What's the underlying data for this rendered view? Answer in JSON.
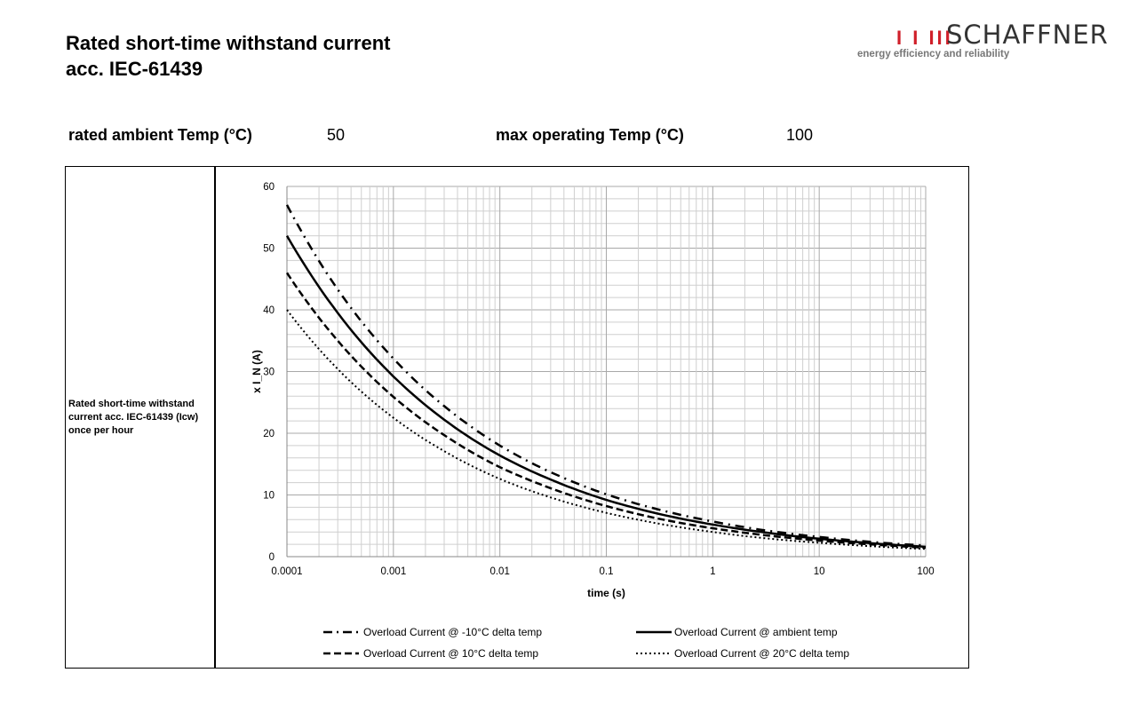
{
  "header": {
    "title_line1": "Rated short-time withstand current",
    "title_line2": "acc. IEC-61439"
  },
  "logo": {
    "wordmark": "SCHAFFNER",
    "bars": "I  I III",
    "tagline": "energy efficiency and reliability"
  },
  "params": {
    "ambient_label": "rated ambient Temp (°C)",
    "ambient_value": "50",
    "max_label": "max operating Temp (°C)",
    "max_value": "100"
  },
  "row_label": "Rated short-time withstand current acc. IEC-61439 (Icw) once per hour",
  "chart_data": {
    "type": "line",
    "xscale": "log",
    "xlabel": "time (s)",
    "ylabel": "x I_N (A)",
    "xlim": [
      0.0001,
      100
    ],
    "ylim": [
      0,
      60
    ],
    "grid": true,
    "legend_position": "bottom",
    "x_ticks": [
      "0.0001",
      "0.001",
      "0.01",
      "0.1",
      "1",
      "10",
      "100"
    ],
    "y_ticks": [
      "0",
      "10",
      "20",
      "30",
      "40",
      "50",
      "60"
    ],
    "x": [
      0.0001,
      0.0003,
      0.001,
      0.003,
      0.01,
      0.03,
      0.1,
      0.3,
      1,
      3,
      10,
      30,
      100
    ],
    "series": [
      {
        "name": "Overload Current @ -10°C delta temp",
        "style": "dashdot",
        "values": [
          57,
          43.3,
          32.1,
          24.4,
          18.0,
          13.7,
          10.1,
          7.7,
          5.7,
          4.3,
          3.2,
          2.4,
          1.8
        ]
      },
      {
        "name": "Overload Current @ ambient temp",
        "style": "solid",
        "values": [
          52,
          39.5,
          29.2,
          22.2,
          16.4,
          12.5,
          9.2,
          7.0,
          5.2,
          3.95,
          2.9,
          2.2,
          1.6
        ]
      },
      {
        "name": "Overload Current @ 10°C delta temp",
        "style": "dashed",
        "values": [
          46,
          35.0,
          25.9,
          19.7,
          14.5,
          11.1,
          8.2,
          6.2,
          4.6,
          3.5,
          2.6,
          2.0,
          1.45
        ]
      },
      {
        "name": "Overload Current @ 20°C delta temp",
        "style": "dotted",
        "values": [
          40,
          30.4,
          22.5,
          17.1,
          12.6,
          9.6,
          7.1,
          5.4,
          4.0,
          3.0,
          2.25,
          1.7,
          1.25
        ]
      }
    ]
  }
}
